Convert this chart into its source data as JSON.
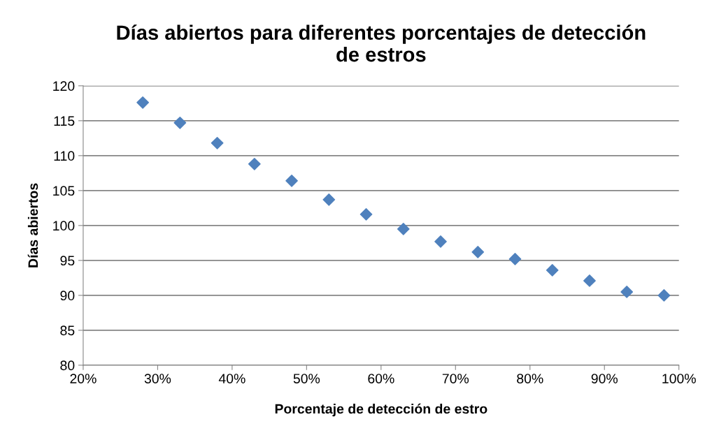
{
  "chart_data": {
    "type": "scatter",
    "title": "Días abiertos para diferentes porcentajes de detección\nde estros",
    "xlabel": "Porcentaje de detección de estro",
    "ylabel": "Días abiertos",
    "x": [
      28,
      33,
      38,
      43,
      48,
      53,
      58,
      63,
      68,
      73,
      78,
      83,
      88,
      93,
      98
    ],
    "series": [
      {
        "color": "#4f81bd",
        "values": [
          117.6,
          114.7,
          111.8,
          108.8,
          106.4,
          103.7,
          101.6,
          99.5,
          97.7,
          96.2,
          95.2,
          93.6,
          92.1,
          90.5,
          90.0
        ]
      }
    ],
    "xlim": [
      20,
      100
    ],
    "ylim": [
      80,
      120
    ],
    "xticks": [
      {
        "value": 20,
        "label": "20%"
      },
      {
        "value": 30,
        "label": "30%"
      },
      {
        "value": 40,
        "label": "40%"
      },
      {
        "value": 50,
        "label": "50%"
      },
      {
        "value": 60,
        "label": "60%"
      },
      {
        "value": 70,
        "label": "70%"
      },
      {
        "value": 80,
        "label": "80%"
      },
      {
        "value": 90,
        "label": "90%"
      },
      {
        "value": 100,
        "label": "100%"
      }
    ],
    "yticks": [
      80,
      85,
      90,
      95,
      100,
      105,
      110,
      115,
      120
    ],
    "grid": "y",
    "marker": "diamond",
    "legend": false
  }
}
